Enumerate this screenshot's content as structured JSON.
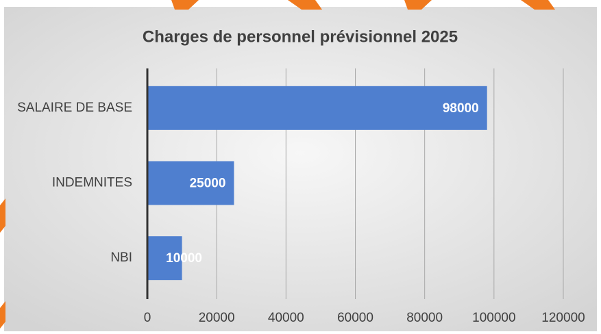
{
  "chart_data": {
    "type": "bar",
    "orientation": "horizontal",
    "title": "Charges de personnel prévisionnel 2025",
    "categories": [
      "SALAIRE DE BASE",
      "INDEMNITES",
      "NBI"
    ],
    "values": [
      98000,
      25000,
      10000
    ],
    "color": "#4f7fcf",
    "xlim": [
      0,
      120000
    ],
    "xticks": [
      0,
      20000,
      40000,
      60000,
      80000,
      100000,
      120000
    ],
    "grid": true
  }
}
